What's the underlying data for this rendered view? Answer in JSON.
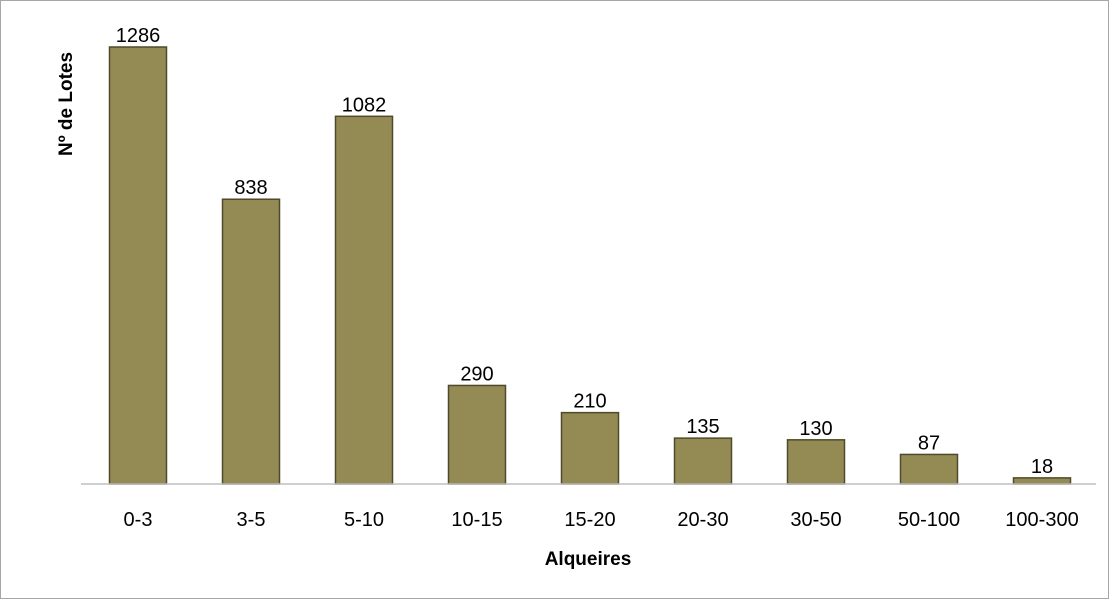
{
  "caption": {
    "label": "",
    "text": ""
  },
  "chart_data": {
    "type": "bar",
    "title": "",
    "xlabel": "Alqueires",
    "ylabel": "Nº de Lotes",
    "categories": [
      "0-3",
      "3-5",
      "5-10",
      "10-15",
      "15-20",
      "20-30",
      "30-50",
      "50-100",
      "100-300"
    ],
    "values": [
      1286,
      838,
      1082,
      290,
      210,
      135,
      130,
      87,
      18
    ],
    "ylim": [
      0,
      1300
    ],
    "grid": false,
    "legend": "none",
    "data_labels": true,
    "colors": {
      "bar_fill": "#948a54",
      "bar_stroke": "#4f4a2a",
      "axis": "#bfbfbf",
      "frame": "#a6a6a6",
      "text": "#000000"
    }
  }
}
